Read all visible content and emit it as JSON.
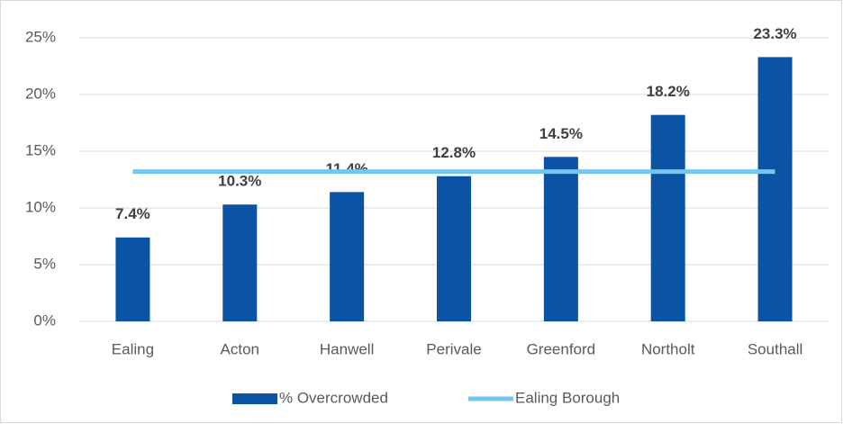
{
  "chart_data": {
    "type": "bar",
    "categories": [
      "Ealing",
      "Acton",
      "Hanwell",
      "Perivale",
      "Greenford",
      "Northolt",
      "Southall"
    ],
    "series": [
      {
        "name": "% Overcrowded",
        "color": "#0a53a5",
        "type": "bar",
        "values": [
          7.4,
          10.3,
          11.4,
          12.8,
          14.5,
          18.2,
          23.3
        ],
        "value_labels": [
          "7.4%",
          "10.3%",
          "11.4%",
          "12.8%",
          "14.5%",
          "18.2%",
          "23.3%"
        ]
      },
      {
        "name": "Ealing Borough",
        "color": "#75c5ef",
        "type": "line",
        "values": [
          13.2,
          13.2,
          13.2,
          13.2,
          13.2,
          13.2,
          13.2
        ]
      }
    ],
    "ylim": [
      0,
      25
    ],
    "yticks": [
      {
        "value": 0,
        "label": "0%"
      },
      {
        "value": 5,
        "label": "5%"
      },
      {
        "value": 10,
        "label": "10%"
      },
      {
        "value": 15,
        "label": "15%"
      },
      {
        "value": 20,
        "label": "20%"
      },
      {
        "value": 25,
        "label": "25%"
      }
    ],
    "grid": true,
    "legend": "bottom"
  }
}
